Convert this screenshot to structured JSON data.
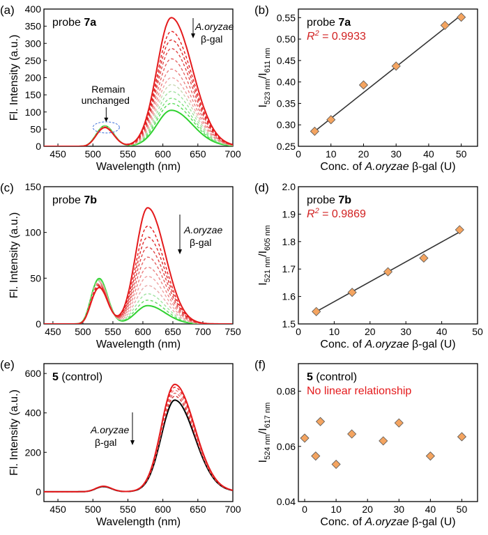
{
  "chart_data": [
    {
      "id": "a",
      "type": "line",
      "panel_label": "(a)",
      "xlabel": "Wavelength (nm)",
      "ylabel": "Fl. Intensity (a.u.)",
      "xlim": [
        430,
        700
      ],
      "ylim": [
        0,
        400
      ],
      "xticks": [
        450,
        500,
        550,
        600,
        650,
        700
      ],
      "yticks": [
        0,
        50,
        100,
        150,
        200,
        250,
        300,
        350,
        400
      ],
      "probe_text": "probe ",
      "probe_bold": "7a",
      "arrow_label_italic": "A.oryzae",
      "arrow_label_rest": "β-gal",
      "annotation": [
        "Remain",
        "unchanged"
      ],
      "spectra": {
        "peak1_center": 517,
        "peak1_width": 18,
        "peak2_center": 612,
        "peak2_width": 34,
        "curves": [
          {
            "peak1": 55,
            "peak2": 375,
            "color": "#e41a1c",
            "style": "solid"
          },
          {
            "peak1": 55,
            "peak2": 335,
            "color": "#e41a1c",
            "style": "dashed"
          },
          {
            "peak1": 56,
            "peak2": 310,
            "color": "#dd2a2a",
            "style": "dashed"
          },
          {
            "peak1": 56,
            "peak2": 285,
            "color": "#e04444",
            "style": "dashed"
          },
          {
            "peak1": 57,
            "peak2": 255,
            "color": "#e46060",
            "style": "dashed"
          },
          {
            "peak1": 57,
            "peak2": 225,
            "color": "#ea8080",
            "style": "dashed"
          },
          {
            "peak1": 58,
            "peak2": 200,
            "color": "#f0a0a0",
            "style": "dashed"
          },
          {
            "peak1": 58,
            "peak2": 180,
            "color": "#c8d6b0",
            "style": "dashed"
          },
          {
            "peak1": 59,
            "peak2": 160,
            "color": "#9fe29f",
            "style": "dashed"
          },
          {
            "peak1": 59,
            "peak2": 140,
            "color": "#7ee07e",
            "style": "dashed"
          },
          {
            "peak1": 60,
            "peak2": 125,
            "color": "#55dd55",
            "style": "dashed"
          },
          {
            "peak1": 60,
            "peak2": 105,
            "color": "#2fd12f",
            "style": "solid"
          }
        ]
      }
    },
    {
      "id": "b",
      "type": "scatter",
      "panel_label": "(b)",
      "xlabel_pre": "Conc. of ",
      "xlabel_italic": "A.oryzae",
      "xlabel_post": " β-gal (U)",
      "ylabel_main": "I",
      "ylabel_sub1": "523 nm",
      "ylabel_slash": "/I",
      "ylabel_sub2": "611 nm",
      "xlim": [
        0,
        55
      ],
      "ylim": [
        0.25,
        0.57
      ],
      "xticks": [
        0,
        10,
        20,
        30,
        40,
        50
      ],
      "yticks": [
        0.25,
        0.3,
        0.35,
        0.4,
        0.45,
        0.5,
        0.55
      ],
      "ytick_labels": [
        "0.25",
        "0.30",
        "0.35",
        "0.40",
        "0.45",
        "0.50",
        "0.55"
      ],
      "probe_text": "probe ",
      "probe_bold": "7a",
      "r2_label": "R",
      "r2_value": " = 0.9933",
      "x": [
        5,
        10,
        20,
        30,
        45,
        50
      ],
      "y": [
        0.285,
        0.312,
        0.393,
        0.437,
        0.532,
        0.551
      ],
      "fit": {
        "x": [
          5,
          50
        ],
        "y": [
          0.285,
          0.556
        ]
      }
    },
    {
      "id": "c",
      "type": "line",
      "panel_label": "(c)",
      "xlabel": "Wavelength (nm)",
      "ylabel": "Fl. Intensity (a.u.)",
      "xlim": [
        435,
        750
      ],
      "ylim": [
        0,
        150
      ],
      "xticks": [
        450,
        500,
        550,
        600,
        650,
        700,
        750
      ],
      "yticks": [
        0,
        50,
        100,
        150
      ],
      "probe_text": "probe ",
      "probe_bold": "7b",
      "arrow_label_italic": "A.oryzae",
      "arrow_label_rest": "β-gal",
      "spectra": {
        "peak1_center": 527,
        "peak1_width": 20,
        "peak2_center": 608,
        "peak2_width": 33,
        "curves": [
          {
            "peak1": 40,
            "peak2": 127,
            "color": "#e41a1c",
            "style": "solid"
          },
          {
            "peak1": 41,
            "peak2": 107,
            "color": "#e41a1c",
            "style": "dashed"
          },
          {
            "peak1": 42,
            "peak2": 95,
            "color": "#dd2a2a",
            "style": "dashed"
          },
          {
            "peak1": 43,
            "peak2": 84,
            "color": "#e04444",
            "style": "dashed"
          },
          {
            "peak1": 44,
            "peak2": 73,
            "color": "#e46060",
            "style": "dashed"
          },
          {
            "peak1": 45,
            "peak2": 62,
            "color": "#ea8080",
            "style": "dashed"
          },
          {
            "peak1": 46,
            "peak2": 52,
            "color": "#f0a0a0",
            "style": "dashed"
          },
          {
            "peak1": 47,
            "peak2": 42,
            "color": "#e8a8a8",
            "style": "dashed"
          },
          {
            "peak1": 48,
            "peak2": 33,
            "color": "#9fe29f",
            "style": "dashed"
          },
          {
            "peak1": 49,
            "peak2": 26,
            "color": "#66dd66",
            "style": "dashed"
          },
          {
            "peak1": 50,
            "peak2": 20,
            "color": "#2fd12f",
            "style": "solid"
          }
        ]
      }
    },
    {
      "id": "d",
      "type": "scatter",
      "panel_label": "(d)",
      "xlabel_pre": "Conc. of ",
      "xlabel_italic": "A.oryzae",
      "xlabel_post": " β-gal (U)",
      "ylabel_main": "I",
      "ylabel_sub1": "521 nm",
      "ylabel_slash": "/I",
      "ylabel_sub2": "605 nm",
      "xlim": [
        0,
        50
      ],
      "ylim": [
        1.5,
        2.0
      ],
      "xticks": [
        0,
        10,
        20,
        30,
        40,
        50
      ],
      "yticks": [
        1.5,
        1.6,
        1.7,
        1.8,
        1.9,
        2.0
      ],
      "ytick_labels": [
        "1.5",
        "1.6",
        "1.7",
        "1.8",
        "1.9",
        "2.0"
      ],
      "probe_text": "probe ",
      "probe_bold": "7b",
      "r2_label": "R",
      "r2_value": " = 0.9869",
      "x": [
        5,
        15,
        25,
        35,
        45
      ],
      "y": [
        1.545,
        1.615,
        1.69,
        1.74,
        1.843
      ],
      "fit": {
        "x": [
          5,
          45
        ],
        "y": [
          1.545,
          1.835
        ]
      }
    },
    {
      "id": "e",
      "type": "line",
      "panel_label": "(e)",
      "xlabel": "Wavelength (nm)",
      "ylabel": "Fl. Intensity (a.u.)",
      "xlim": [
        430,
        700
      ],
      "ylim": [
        -50,
        650
      ],
      "xticks": [
        450,
        500,
        550,
        600,
        650,
        700
      ],
      "yticks": [
        0,
        200,
        400,
        600
      ],
      "probe_bold": "5",
      "probe_text": " (control)",
      "arrow_label_italic": "A.oryzae",
      "arrow_label_rest": "β-gal",
      "spectra": {
        "peak1_center": 515,
        "peak1_width": 16,
        "peak2_center": 617,
        "peak2_width": 32,
        "curves": [
          {
            "peak1": 28,
            "peak2": 545,
            "color": "#e41a1c",
            "style": "solid"
          },
          {
            "peak1": 28,
            "peak2": 530,
            "color": "#e41a1c",
            "style": "dashed"
          },
          {
            "peak1": 27,
            "peak2": 515,
            "color": "#f08080",
            "style": "dashed"
          },
          {
            "peak1": 27,
            "peak2": 500,
            "color": "#e46060",
            "style": "dashed"
          },
          {
            "peak1": 27,
            "peak2": 485,
            "color": "#d33030",
            "style": "dashed"
          },
          {
            "peak1": 26,
            "peak2": 465,
            "color": "#000000",
            "style": "solid"
          }
        ]
      }
    },
    {
      "id": "f",
      "type": "scatter",
      "panel_label": "(f)",
      "xlabel_pre": "Conc. of ",
      "xlabel_italic": "A.oryzae",
      "xlabel_post": " β-gal (U)",
      "ylabel_main": "I",
      "ylabel_sub1": "524 nm",
      "ylabel_slash": "/I",
      "ylabel_sub2": "617 nm",
      "xlim": [
        -2,
        55
      ],
      "ylim": [
        0.04,
        0.09
      ],
      "xticks": [
        0,
        10,
        20,
        30,
        40,
        50
      ],
      "yticks": [
        0.04,
        0.06,
        0.08
      ],
      "ytick_labels": [
        "0.04",
        "0.06",
        "0.08"
      ],
      "probe_bold": "5",
      "probe_text": " (control)",
      "note": "No linear relationship",
      "x": [
        0,
        3.5,
        5,
        10,
        15,
        25,
        30,
        40,
        50
      ],
      "y": [
        0.063,
        0.0565,
        0.069,
        0.0535,
        0.0645,
        0.062,
        0.0685,
        0.0565,
        0.0635
      ]
    }
  ]
}
